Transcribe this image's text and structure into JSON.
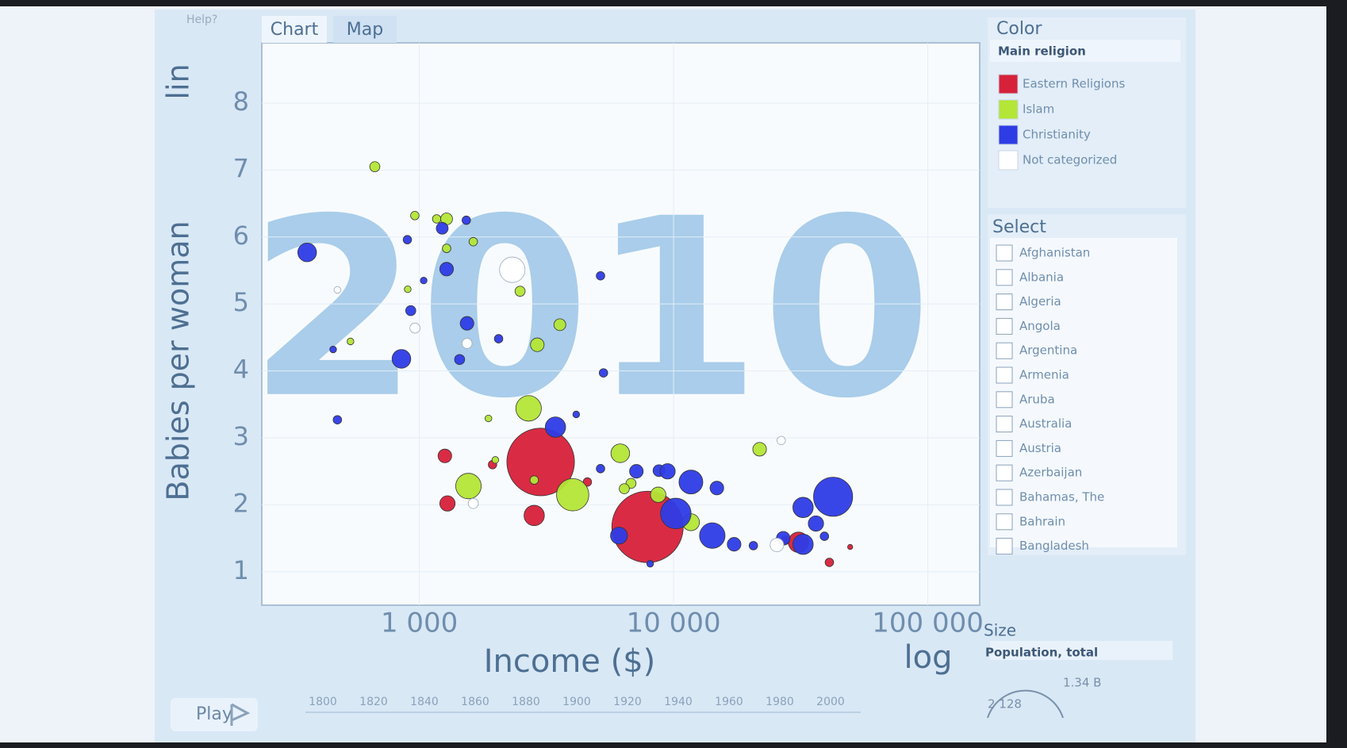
{
  "chart_data": {
    "type": "bubble",
    "year": "2010",
    "y_label": "Babies per woman",
    "x_label": "Income ($)",
    "xscale": "log",
    "yscale": "lin",
    "xlim": [
      240,
      160000
    ],
    "ylim": [
      0.5,
      8.9
    ],
    "xticks": [
      {
        "value": 1000,
        "label": "1 000"
      },
      {
        "value": 10000,
        "label": "10 000"
      },
      {
        "value": 100000,
        "label": "100 000"
      }
    ],
    "yticks": [
      1,
      2,
      3,
      4,
      5,
      6,
      7,
      8
    ],
    "grid": true,
    "size_range": [
      {
        "value": 2128,
        "label": "2 128"
      },
      {
        "value": 1340000000,
        "label": "1.34 B"
      }
    ],
    "series": [
      {
        "name": "Eastern Religions",
        "color": "#d7213a",
        "x": [
          3000,
          7900,
          1260,
          1290,
          2830,
          1940,
          4580,
          31000,
          41000,
          49500,
          27500
        ],
        "values": [
          2.64,
          1.67,
          2.73,
          2.02,
          1.84,
          2.6,
          2.34,
          1.44,
          1.14,
          1.37,
          1.47
        ],
        "sizes": [
          1200000000,
          1340000000,
          49000000,
          62000000,
          109000000,
          19000000,
          19000000,
          109000000,
          19000000,
          7000000,
          19000000
        ]
      },
      {
        "name": "Islam",
        "color": "#b3e636",
        "x": [
          668,
          960,
          1170,
          1280,
          1280,
          1630,
          900,
          2490,
          536,
          2910,
          3570,
          2690,
          1560,
          4010,
          6170,
          8700,
          11700,
          21800,
          6800,
          1990,
          1870,
          2830,
          6400
        ],
        "values": [
          7.05,
          6.32,
          6.27,
          6.27,
          5.83,
          5.93,
          5.22,
          5.19,
          4.44,
          4.39,
          4.69,
          3.44,
          2.28,
          2.15,
          2.77,
          2.15,
          1.74,
          2.83,
          2.32,
          2.67,
          3.29,
          2.37,
          2.24
        ],
        "sizes": [
          27000000,
          19000000,
          19000000,
          37000000,
          19000000,
          19000000,
          12000000,
          27000000,
          12000000,
          49000000,
          37000000,
          171000000,
          171000000,
          274000000,
          92000000,
          62000000,
          76000000,
          49000000,
          27000000,
          12000000,
          12000000,
          19000000,
          27000000
        ]
      },
      {
        "name": "Christianity",
        "color": "#2e3ce6",
        "x": [
          362,
          897,
          1230,
          1530,
          1280,
          1040,
          925,
          1540,
          2050,
          5160,
          458,
          850,
          1440,
          5300,
          476,
          3430,
          7140,
          8760,
          9470,
          11700,
          10200,
          14800,
          14200,
          17300,
          20600,
          6100,
          32300,
          36300,
          42400,
          32300,
          27000,
          39200,
          8090,
          5160,
          4140
        ],
        "values": [
          5.77,
          5.96,
          6.13,
          6.25,
          5.52,
          5.35,
          4.9,
          4.71,
          4.48,
          5.42,
          4.32,
          4.18,
          4.17,
          3.97,
          3.27,
          3.16,
          2.5,
          2.51,
          2.5,
          2.34,
          1.87,
          2.25,
          1.54,
          1.41,
          1.39,
          1.54,
          1.96,
          1.72,
          2.12,
          1.41,
          1.5,
          1.53,
          1.12,
          2.54,
          3.35
        ],
        "sizes": [
          92000000,
          19000000,
          37000000,
          19000000,
          49000000,
          12000000,
          27000000,
          49000000,
          19000000,
          19000000,
          12000000,
          92000000,
          27000000,
          19000000,
          19000000,
          109000000,
          49000000,
          37000000,
          62000000,
          149000000,
          246000000,
          49000000,
          171000000,
          49000000,
          19000000,
          76000000,
          109000000,
          62000000,
          402000000,
          109000000,
          49000000,
          19000000,
          12000000,
          19000000,
          12000000
        ]
      },
      {
        "name": "Not categorized",
        "color": "#ffffff",
        "x": [
          2320,
          961,
          1540,
          1630,
          26500,
          25500,
          476
        ],
        "values": [
          5.51,
          4.64,
          4.41,
          2.02,
          2.96,
          1.4,
          5.21
        ],
        "sizes": [
          171000000,
          27000000,
          27000000,
          27000000,
          19000000,
          49000000,
          12000000
        ]
      }
    ]
  },
  "ui": {
    "help": "Help?",
    "tabs": [
      "Chart",
      "Map"
    ],
    "color_panel": {
      "title": "Color",
      "dropdown": "Main religion"
    },
    "select_panel": {
      "title": "Select",
      "countries": [
        "Afghanistan",
        "Albania",
        "Algeria",
        "Angola",
        "Argentina",
        "Armenia",
        "Aruba",
        "Australia",
        "Austria",
        "Azerbaijan",
        "Bahamas, The",
        "Bahrain",
        "Bangladesh"
      ]
    },
    "size_panel": {
      "title": "Size",
      "dropdown": "Population, total"
    },
    "play": "Play",
    "timeline": [
      "1800",
      "1820",
      "1840",
      "1860",
      "1880",
      "1900",
      "1920",
      "1940",
      "1960",
      "1980",
      "2000"
    ]
  }
}
